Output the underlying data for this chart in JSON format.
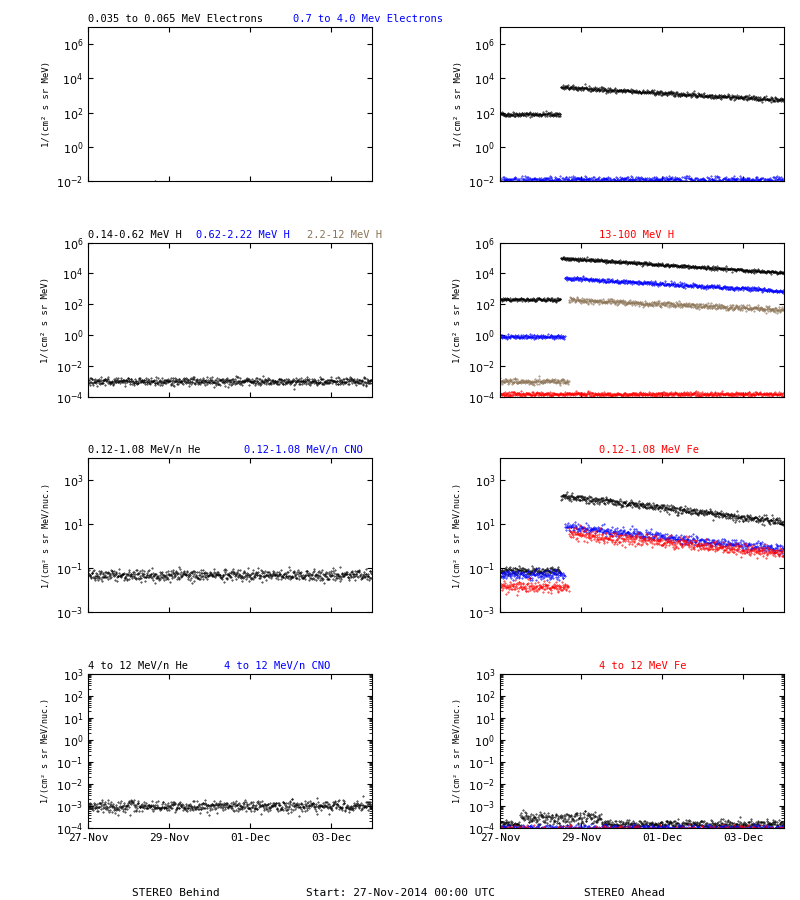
{
  "title_row1_left_black": "0.035 to 0.065 MeV Electrons",
  "title_row1_right_blue": "0.7 to 4.0 Mev Electrons",
  "title_row2_left_black": "0.14-0.62 MeV H",
  "title_row2_left_blue": "0.62-2.22 MeV H",
  "title_row2_left_brown": "2.2-12 MeV H",
  "title_row2_right_red": "13-100 MeV H",
  "title_row3_left_black": "0.12-1.08 MeV/n He",
  "title_row3_left_blue": "0.12-1.08 MeV/n CNO",
  "title_row3_right_red": "0.12-1.08 MeV Fe",
  "title_row4_left_black": "4 to 12 MeV/n He",
  "title_row4_left_blue": "4 to 12 MeV/n CNO",
  "title_row4_right_red": "4 to 12 MeV Fe",
  "xlabel_left": "STEREO Behind",
  "xlabel_right": "STEREO Ahead",
  "xlabel_center": "Start: 27-Nov-2014 00:00 UTC",
  "xtick_labels": [
    "27-Nov",
    "29-Nov",
    "01-Dec",
    "03-Dec"
  ],
  "ylabel_electrons": "1/(cm² s sr MeV)",
  "ylabel_H": "1/(cm² s sr MeV)",
  "ylabel_heavy": "1/(cm² s sr MeV/nuc.)",
  "seed": 42
}
